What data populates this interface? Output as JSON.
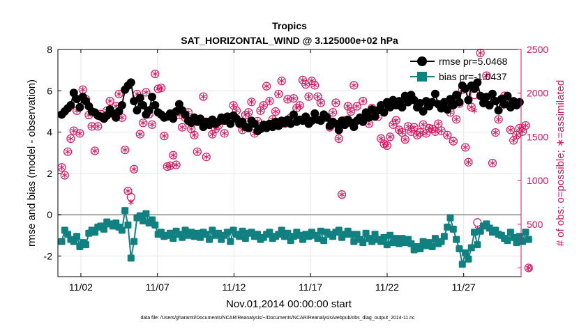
{
  "chart_data": {
    "type": "line",
    "title": "Tropics",
    "subtitle": "SAT_HORIZONTAL_WIND @ 3.125000e+02 hPa",
    "xlabel": "Nov.01,2014 00:00:00 start",
    "ylabel_left": "rmse and bias (model - observation)",
    "ylabel_right": "# of obs: o=possible; ∗=assimilated",
    "footnote": "data file: /Users/gharamti/Documents/NCAR/Reanalysis/~/Documents/NCAR/Reanalysis/webpub/obs_diag_output_2014-11.nc",
    "x_range": [
      0.5,
      30.75
    ],
    "ylim_left": [
      -3,
      8
    ],
    "ylim_right": [
      -100,
      2500
    ],
    "left_ticks": [
      -2,
      0,
      2,
      4,
      6,
      8
    ],
    "right_ticks": [
      0,
      500,
      1000,
      1500,
      2000,
      2500
    ],
    "x_ticks": [
      {
        "value": 2,
        "label": "11/02"
      },
      {
        "value": 7,
        "label": "11/07"
      },
      {
        "value": 12,
        "label": "11/12"
      },
      {
        "value": 17,
        "label": "11/17"
      },
      {
        "value": 22,
        "label": "11/22"
      },
      {
        "value": 27,
        "label": "11/27"
      }
    ],
    "zero_line": 0,
    "grid": true,
    "legend": [
      {
        "label": "rmse pr=5.0468",
        "color": "#000000"
      },
      {
        "label": "bias pr=-1.0437",
        "color": "#118080"
      }
    ],
    "rmse": [
      4.85,
      5.0,
      5.15,
      5.3,
      5.9,
      5.6,
      5.2,
      5.7,
      5.5,
      5.25,
      5.0,
      4.95,
      4.8,
      4.75,
      4.65,
      4.8,
      5.1,
      4.9,
      4.7,
      5.0,
      5.3,
      6.05,
      6.25,
      6.4,
      5.5,
      5.05,
      5.65,
      5.3,
      4.85,
      5.05,
      5.7,
      5.3,
      4.95,
      4.85,
      4.7,
      4.75,
      4.9,
      4.65,
      5.0,
      5.35,
      5.05,
      4.85,
      4.55,
      4.45,
      4.7,
      4.5,
      4.65,
      4.25,
      4.5,
      4.35,
      4.6,
      4.4,
      4.5,
      4.7,
      4.55,
      4.75,
      4.4,
      4.8,
      4.65,
      4.4,
      4.5,
      4.25,
      4.2,
      4.55,
      4.4,
      4.05,
      4.15,
      4.35,
      4.2,
      4.4,
      4.25,
      4.5,
      4.3,
      4.55,
      4.45,
      4.6,
      4.4,
      4.85,
      4.5,
      4.6,
      4.55,
      4.75,
      4.4,
      4.55,
      4.9,
      4.6,
      4.55,
      4.85,
      4.7,
      4.3,
      4.5,
      4.4,
      4.1,
      4.55,
      4.35,
      4.6,
      4.45,
      4.25,
      4.55,
      4.7,
      4.5,
      4.95,
      4.7,
      5.1,
      4.75,
      5.05,
      5.3,
      4.95,
      5.45,
      5.2,
      5.55,
      5.3,
      5.5,
      5.2,
      5.75,
      5.45,
      5.8,
      5.55,
      5.2,
      5.4,
      5.0,
      5.5,
      5.25,
      5.45,
      5.85,
      5.35,
      5.15,
      5.45,
      5.1,
      5.6,
      5.3,
      5.8,
      5.45,
      6.25,
      6.1,
      5.55,
      6.25,
      6.1,
      6.4,
      5.75,
      5.4,
      5.7,
      5.3,
      5.85,
      5.5,
      5.05,
      5.6,
      5.35,
      5.75,
      5.2,
      5.5,
      5.3,
      5.45
    ],
    "bias": [
      -1.3,
      -0.75,
      -0.95,
      -1.2,
      -1.3,
      -1.05,
      -1.55,
      -1.35,
      -1.45,
      -0.9,
      -0.75,
      -0.85,
      -0.6,
      -0.55,
      -0.7,
      -0.35,
      -0.45,
      -0.55,
      -0.4,
      -0.6,
      -0.75,
      0.2,
      -0.5,
      -2.1,
      -1.3,
      -0.15,
      -0.05,
      -0.3,
      0.05,
      -0.4,
      -0.25,
      -0.5,
      -0.95,
      -0.85,
      -1.05,
      -1.0,
      -0.9,
      -1.15,
      -0.8,
      -0.95,
      -1.1,
      -0.75,
      -1.0,
      -0.85,
      -1.05,
      -0.9,
      -1.1,
      -0.85,
      -0.95,
      -1.2,
      -0.75,
      -1.0,
      -0.9,
      -1.2,
      -1.0,
      -0.85,
      -1.3,
      -0.75,
      -0.95,
      -1.05,
      -0.8,
      -1.15,
      -0.9,
      -0.85,
      -1.05,
      -0.95,
      -1.2,
      -1.1,
      -0.95,
      -0.85,
      -1.15,
      -1.05,
      -0.95,
      -0.75,
      -1.05,
      -0.9,
      -1.25,
      -1.05,
      -0.85,
      -1.0,
      -1.2,
      -0.95,
      -1.05,
      -0.85,
      -1.0,
      -1.15,
      -0.8,
      -1.25,
      -0.85,
      -0.95,
      -1.05,
      -0.85,
      -0.75,
      -1.1,
      -0.95,
      -0.8,
      -0.95,
      -1.3,
      -0.95,
      -1.2,
      -1.35,
      -0.9,
      -1.15,
      -1.3,
      -0.95,
      -1.2,
      -1.3,
      -1.1,
      -1.45,
      -1.0,
      -1.35,
      -1.15,
      -1.4,
      -1.15,
      -1.35,
      -1.2,
      -1.4,
      -1.7,
      -1.55,
      -1.65,
      -1.3,
      -1.5,
      -1.35,
      -1.55,
      -1.15,
      -1.4,
      -1.3,
      -1.05,
      -0.6,
      -0.15,
      -0.7,
      -1.2,
      -1.65,
      -2.4,
      -1.85,
      -2.15,
      -1.6,
      -0.85,
      -1.45,
      -0.8,
      -0.55,
      -0.45,
      -0.65,
      -0.85,
      -0.75,
      -0.95,
      -1.0,
      -1.15,
      -1.25,
      -0.85,
      -1.1,
      -1.35,
      -1.05,
      -1.3,
      -0.85,
      -1.2
    ],
    "obs_possible": [
      1150,
      1060,
      1330,
      1480,
      1570,
      1800,
      1540,
      2040,
      1930,
      1750,
      1620,
      1340,
      1620,
      1760,
      1710,
      1800,
      1910,
      1770,
      1850,
      1990,
      1720,
      1350,
      880,
      810,
      1130,
      1990,
      1530,
      1660,
      2010,
      1760,
      1640,
      2220,
      2050,
      2060,
      1510,
      1160,
      1170,
      1290,
      1180,
      1750,
      1610,
      1720,
      1780,
      1590,
      1520,
      1330,
      1690,
      1960,
      1270,
      1670,
      1530,
      1590,
      1630,
      1710,
      1540,
      1730,
      1690,
      1860,
      1800,
      1660,
      1580,
      1750,
      1780,
      1900,
      1540,
      1680,
      1800,
      1860,
      2080,
      1910,
      1700,
      1790,
      1990,
      2140,
      1650,
      1930,
      1720,
      1940,
      1830,
      1860,
      2150,
      2100,
      1960,
      2140,
      2090,
      1960,
      1890,
      1720,
      1730,
      1610,
      1780,
      1890,
      1480,
      840,
      1690,
      1850,
      1790,
      2090,
      1850,
      1700,
      1910,
      1720,
      1650,
      1830,
      1780,
      1730,
      1480,
      1420,
      1400,
      1500,
      1640,
      1690,
      1580,
      1550,
      1470,
      1620,
      1560,
      1610,
      1520,
      1550,
      1640,
      1540,
      1600,
      1590,
      1560,
      1650,
      1570,
      1880,
      1520,
      1780,
      1450,
      1700,
      1880,
      2040,
      1380,
      1210,
      1840,
      1980,
      520,
      2460,
      1950,
      2200,
      1860,
      1200,
      1550,
      1700,
      1860,
      1970,
      1930,
      1580,
      1460,
      1520,
      1600,
      1560,
      1630,
      0
    ],
    "obs_assimilated": [
      1150,
      1060,
      1330,
      1480,
      1570,
      1800,
      1540,
      2040,
      1930,
      1750,
      1620,
      1340,
      1620,
      1760,
      1710,
      1800,
      1910,
      1770,
      1850,
      1990,
      1720,
      1350,
      880,
      750,
      1130,
      1990,
      1530,
      1660,
      2010,
      1760,
      1640,
      2220,
      2050,
      2060,
      1510,
      1160,
      1170,
      1290,
      1180,
      1750,
      1610,
      1720,
      1780,
      1590,
      1520,
      1330,
      1690,
      1960,
      1270,
      1670,
      1530,
      1590,
      1630,
      1710,
      1540,
      1730,
      1690,
      1860,
      1800,
      1660,
      1580,
      1750,
      1780,
      1900,
      1540,
      1680,
      1800,
      1860,
      2080,
      1910,
      1700,
      1790,
      1990,
      2140,
      1650,
      1930,
      1720,
      1940,
      1830,
      1860,
      2150,
      2100,
      1960,
      2140,
      2090,
      1960,
      1890,
      1720,
      1730,
      1610,
      1780,
      1890,
      1480,
      840,
      1690,
      1850,
      1790,
      2090,
      1850,
      1700,
      1910,
      1720,
      1650,
      1830,
      1780,
      1730,
      1480,
      1420,
      1400,
      1500,
      1640,
      1690,
      1580,
      1550,
      1470,
      1620,
      1560,
      1610,
      1520,
      1550,
      1640,
      1540,
      1600,
      1590,
      1560,
      1650,
      1570,
      1880,
      1520,
      1780,
      1450,
      1700,
      1880,
      2040,
      1380,
      1210,
      1840,
      1800,
      450,
      2460,
      1950,
      2200,
      1860,
      1200,
      1550,
      1700,
      1860,
      1970,
      1930,
      1580,
      1460,
      1520,
      1600,
      1560,
      1630,
      0
    ]
  }
}
